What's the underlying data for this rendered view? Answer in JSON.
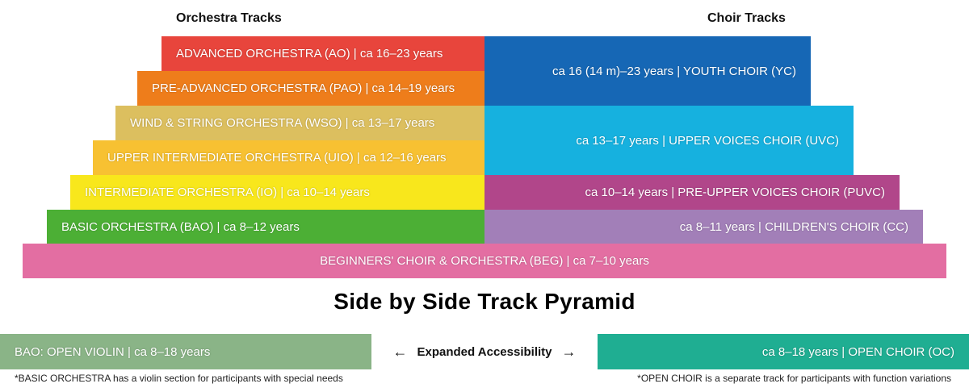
{
  "headers": {
    "orchestra": "Orchestra Tracks",
    "choir": "Choir Tracks"
  },
  "orchestra_tracks": [
    {
      "label": "ADVANCED ORCHESTRA (AO) | ca 16–23 years",
      "color": "#e8453c"
    },
    {
      "label": "PRE-ADVANCED ORCHESTRA (PAO) | ca 14–19 years",
      "color": "#ee7d1b"
    },
    {
      "label": "WIND & STRING ORCHESTRA (WSO) | ca 13–17 years",
      "color": "#dcbf5f"
    },
    {
      "label": "UPPER INTERMEDIATE ORCHESTRA (UIO) | ca 12–16 years",
      "color": "#f7c132"
    },
    {
      "label": "INTERMEDIATE ORCHESTRA (IO) | ca 10–14 years",
      "color": "#f8e71c"
    },
    {
      "label": "BASIC ORCHESTRA (BAO) | ca 8–12 years",
      "color": "#4caf35"
    }
  ],
  "choir_tracks": [
    {
      "label": "ca 16 (14 m)–23 years | YOUTH CHOIR (YC)",
      "color": "#1667b5"
    },
    {
      "label": "ca 13–17 years | UPPER VOICES CHOIR (UVC)",
      "color": "#16b1df"
    },
    {
      "label": "ca 10–14 years | PRE-UPPER VOICES CHOIR (PUVC)",
      "color": "#b1468a"
    },
    {
      "label": "ca 8–11 years | CHILDREN'S CHOIR (CC)",
      "color": "#a27fb8"
    }
  ],
  "beginners": {
    "label": "BEGINNERS' CHOIR & ORCHESTRA (BEG) | ca 7–10 years",
    "color": "#e36ea2"
  },
  "title": "Side by Side Track Pyramid",
  "open_violin": {
    "label": "BAO: OPEN VIOLIN | ca 8–18 years",
    "color": "#8ab487"
  },
  "open_choir": {
    "label": "ca 8–18 years | OPEN CHOIR (OC)",
    "color": "#1fae92"
  },
  "accessibility": {
    "left_arrow": "←",
    "label": "Expanded Accessibility",
    "right_arrow": "→"
  },
  "notes": {
    "left": "*BASIC ORCHESTRA has a violin section for participants with special needs",
    "right": "*OPEN CHOIR is a separate track for participants with function variations"
  }
}
